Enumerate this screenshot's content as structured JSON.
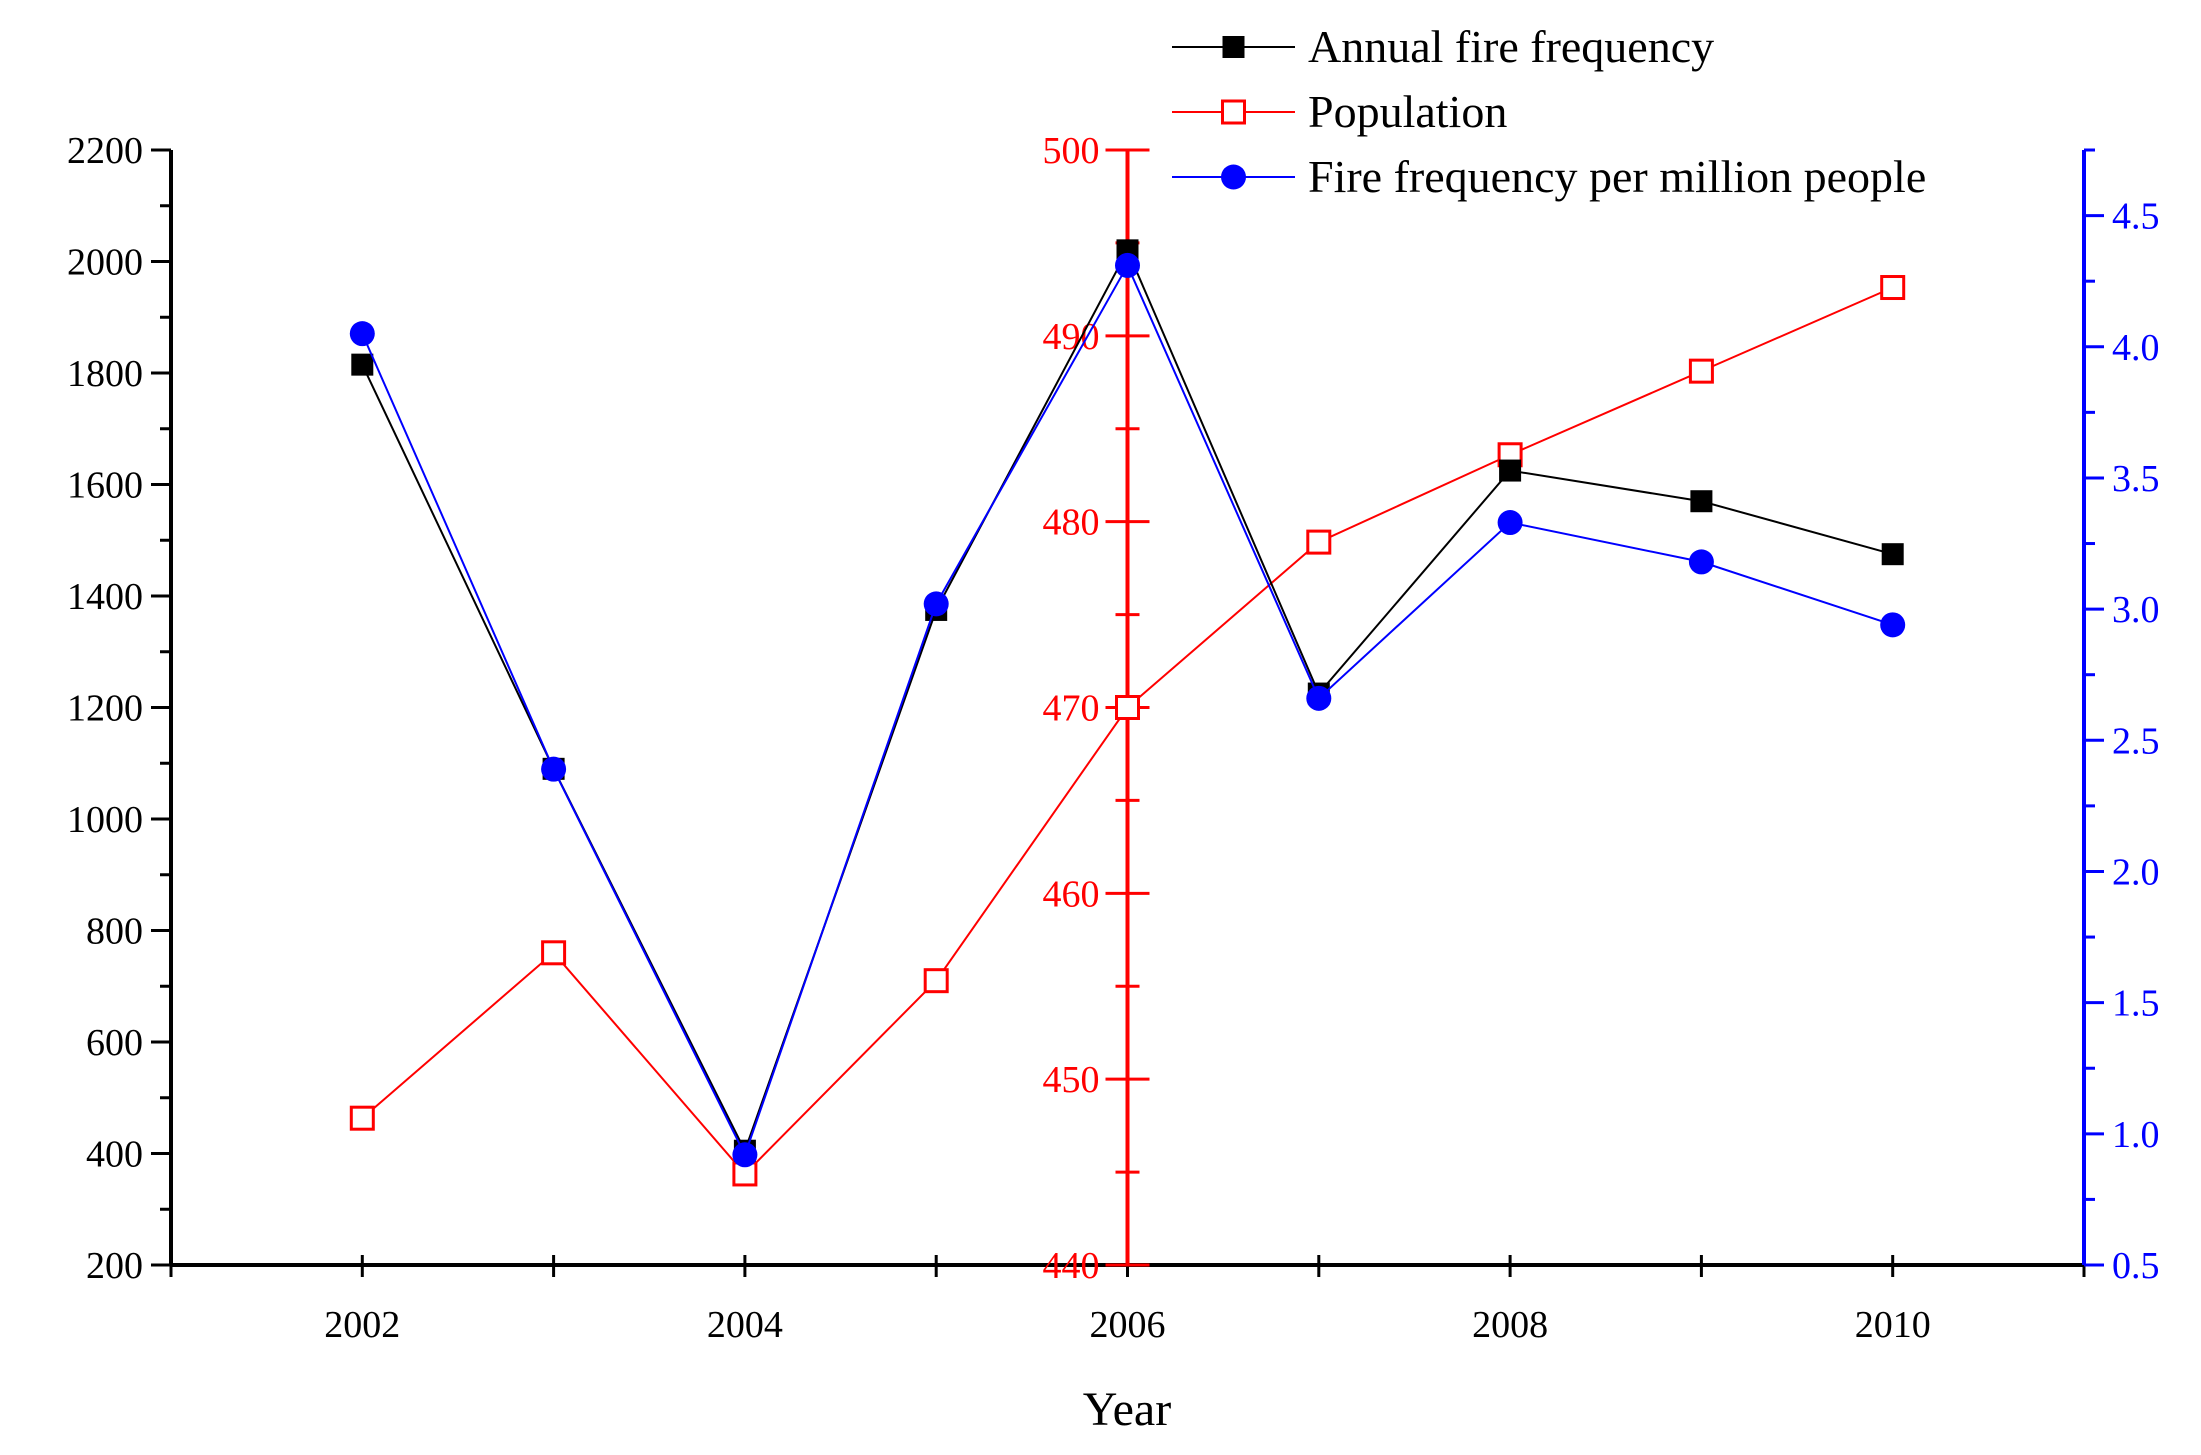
{
  "chart_data": {
    "type": "line",
    "xlabel": "Year",
    "x": [
      2002,
      2003,
      2004,
      2005,
      2006,
      2007,
      2008,
      2009,
      2010
    ],
    "xlim": [
      2001,
      2011
    ],
    "x_ticks": [
      2002,
      2004,
      2006,
      2008,
      2010
    ],
    "x_tick_labels": [
      "2002",
      "2004",
      "2006",
      "2008",
      "2010"
    ],
    "axes": {
      "left": {
        "color": "#000000",
        "ylim": [
          200,
          2200
        ],
        "ticks": [
          200,
          400,
          600,
          800,
          1000,
          1200,
          1400,
          1600,
          1800,
          2000,
          2200
        ],
        "tick_labels": [
          "200",
          "400",
          "600",
          "800",
          "1000",
          "1200",
          "1400",
          "1600",
          "1800",
          "2000",
          "2200"
        ]
      },
      "middle": {
        "color": "#ff0000",
        "position_x": 2006,
        "ylim": [
          440,
          500
        ],
        "ticks": [
          440,
          450,
          460,
          470,
          480,
          490,
          500
        ],
        "tick_labels": [
          "440",
          "450",
          "460",
          "470",
          "480",
          "490",
          "500"
        ]
      },
      "right": {
        "color": "#0000ff",
        "ylim": [
          0.5,
          4.75
        ],
        "ticks": [
          0.5,
          1.0,
          1.5,
          2.0,
          2.5,
          3.0,
          3.5,
          4.0,
          4.5
        ],
        "tick_labels": [
          "0.5",
          "1.0",
          "1.5",
          "2.0",
          "2.5",
          "3.0",
          "3.5",
          "4.0",
          "4.5"
        ]
      }
    },
    "series": [
      {
        "name": "Annual fire frequency",
        "axis": "left",
        "color": "#000000",
        "marker": "filled-square",
        "values": [
          1815,
          1090,
          405,
          1375,
          2020,
          1225,
          1625,
          1570,
          1475
        ]
      },
      {
        "name": "Population",
        "axis": "middle",
        "color": "#ff0000",
        "marker": "open-square",
        "values": [
          447.9,
          456.8,
          444.9,
          455.3,
          470.0,
          478.9,
          483.6,
          488.1,
          492.6
        ]
      },
      {
        "name": "Fire frequency per million people",
        "axis": "right",
        "color": "#0000ff",
        "marker": "filled-circle",
        "values": [
          4.05,
          2.39,
          0.92,
          3.02,
          4.31,
          2.66,
          3.33,
          3.18,
          2.94
        ]
      }
    ],
    "legend": {
      "placement": "top-right"
    },
    "grid": false
  }
}
